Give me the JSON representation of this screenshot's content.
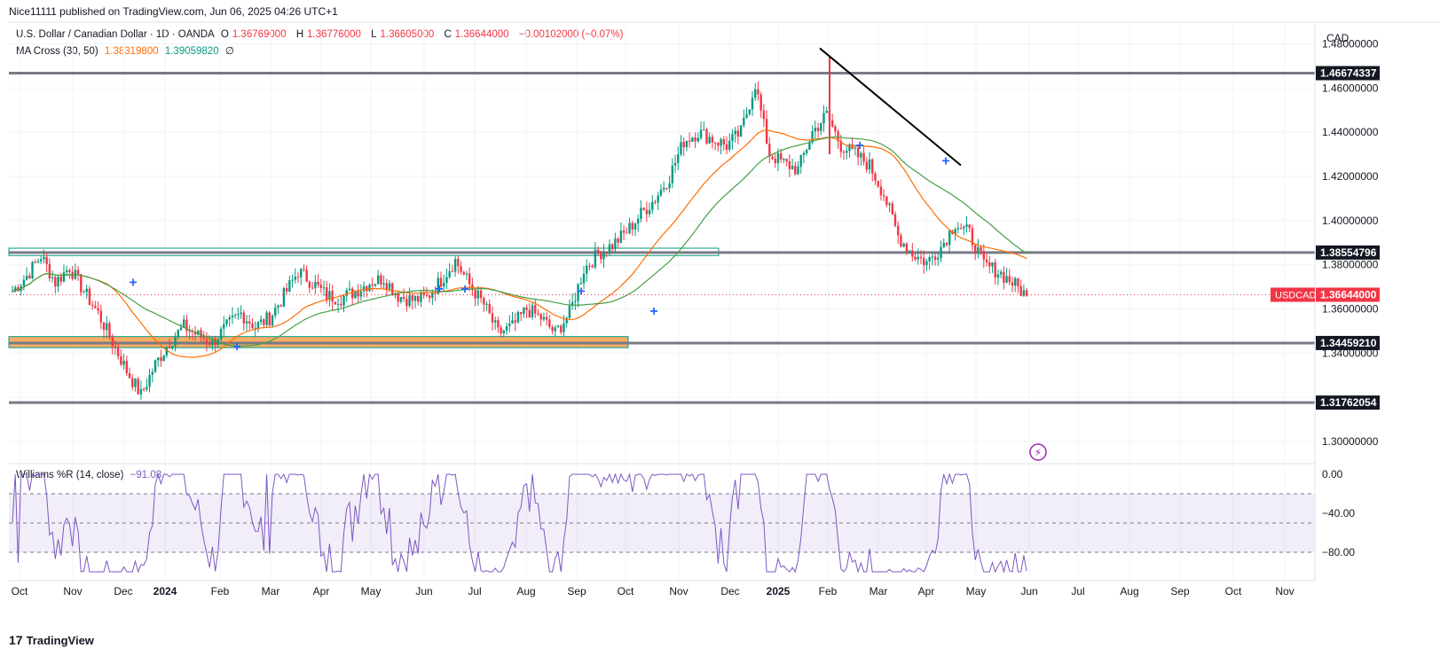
{
  "header": {
    "publisher": "Nice11111 published on TradingView.com, Jun 06, 2025 04:26 UTC+1"
  },
  "legend": {
    "symbol": "U.S. Dollar / Canadian Dollar · 1D · OANDA",
    "open_label": "O",
    "open": "1.36769000",
    "high_label": "H",
    "high": "1.36776000",
    "low_label": "L",
    "low": "1.36605000",
    "close_label": "C",
    "close": "1.36644000",
    "change": "−0.00102000 (−0.07%)",
    "ma_name": "MA Cross (30, 50)",
    "ma1": "1.38319800",
    "ma2": "1.39059820",
    "ma_extra": "∅",
    "wr_name": "Williams %R (14, close)",
    "wr_value": "−91.08"
  },
  "colors": {
    "up": "#089981",
    "down": "#f23645",
    "ma_fast": "#ff6d00",
    "ma_slow": "#43a047",
    "wr": "#7e57c2",
    "level": "#787b86",
    "zone": "#f7a04b",
    "signal": "#2962ff"
  },
  "price_axis": {
    "currency": "CAD",
    "ticks": [
      "1.48000000",
      "1.46000000",
      "1.44000000",
      "1.42000000",
      "1.40000000",
      "1.38000000",
      "1.36000000",
      "1.34000000",
      "1.30000000"
    ],
    "levels": [
      "1.46674337",
      "1.38554796",
      "1.34459210",
      "1.31762054"
    ],
    "current_symbol": "USDCAD",
    "current_price": "1.36644000"
  },
  "wr_axis": {
    "ticks": [
      "0.00",
      "−40.00",
      "−80.00"
    ]
  },
  "time_axis": [
    "Oct",
    "Nov",
    "Dec",
    "2024",
    "Feb",
    "Mar",
    "Apr",
    "May",
    "Jun",
    "Jul",
    "Aug",
    "Sep",
    "Oct",
    "Nov",
    "Dec",
    "2025",
    "Feb",
    "Mar",
    "Apr",
    "May",
    "Jun",
    "Jul",
    "Aug",
    "Sep",
    "Oct",
    "Nov"
  ],
  "footer": {
    "brand": "TradingView",
    "logo": "17"
  },
  "chart_data": {
    "type": "line",
    "title": "U.S. Dollar / Canadian Dollar · 1D · OANDA",
    "ylim": [
      1.29,
      1.485
    ],
    "x_anchor_months": [
      "Oct",
      "Nov",
      "Dec",
      "2024",
      "Feb",
      "Mar",
      "Apr",
      "May",
      "Jun",
      "Jul",
      "Aug",
      "Sep",
      "Oct",
      "Nov",
      "Dec",
      "2025",
      "Feb",
      "Mar",
      "Apr",
      "May",
      "Jun"
    ],
    "series": [
      {
        "name": "USDCAD close",
        "values": [
          1.368,
          1.375,
          1.384,
          1.372,
          1.379,
          1.368,
          1.358,
          1.345,
          1.332,
          1.321,
          1.335,
          1.345,
          1.352,
          1.348,
          1.345,
          1.352,
          1.358,
          1.352,
          1.356,
          1.366,
          1.377,
          1.372,
          1.366,
          1.365,
          1.368,
          1.372,
          1.374,
          1.366,
          1.364,
          1.365,
          1.373,
          1.382,
          1.371,
          1.362,
          1.349,
          1.352,
          1.36,
          1.356,
          1.349,
          1.358,
          1.378,
          1.385,
          1.389,
          1.395,
          1.403,
          1.41,
          1.42,
          1.436,
          1.44,
          1.437,
          1.434,
          1.44,
          1.462,
          1.43,
          1.426,
          1.423,
          1.44,
          1.448,
          1.434,
          1.43,
          1.425,
          1.412,
          1.393,
          1.385,
          1.381,
          1.388,
          1.399,
          1.394,
          1.38,
          1.377,
          1.372,
          1.366
        ]
      },
      {
        "name": "MA 30",
        "values": []
      },
      {
        "name": "MA 50",
        "values": []
      }
    ],
    "support_zone": [
      1.3425,
      1.3475
    ],
    "resistance_zone": [
      1.3852,
      1.3865
    ],
    "trendline": [
      [
        "Jan 2025",
        1.478
      ],
      [
        "Apr 2025",
        1.425
      ]
    ]
  }
}
